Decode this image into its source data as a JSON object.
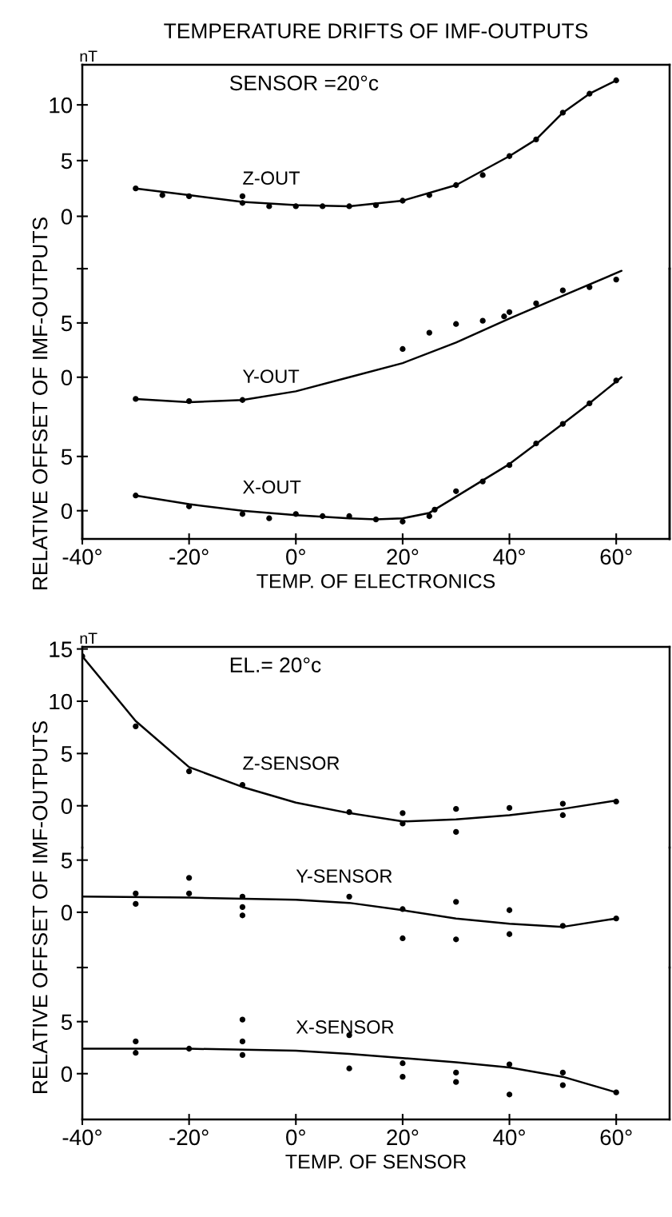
{
  "chart_data": [
    {
      "type": "line",
      "title": "TEMPERATURE DRIFTS OF IMF-OUTPUTS",
      "annotations": [
        "nT",
        "SENSOR =20°c"
      ],
      "xlim": [
        -40,
        70
      ],
      "ylim": [
        -4.7,
        13.6
      ],
      "yticks": [
        {
          "value": -4.7,
          "label": null
        },
        0,
        5,
        10
      ],
      "tick_labels": "y",
      "grid": false,
      "legend": false,
      "series": [
        {
          "name": "Z-OUT",
          "marker": "none",
          "color": "#000000",
          "x": [
            -30,
            -20,
            -10,
            0,
            10,
            20,
            30,
            40,
            45,
            50,
            55,
            60
          ],
          "values": [
            2.5,
            1.9,
            1.3,
            1.0,
            0.9,
            1.4,
            2.8,
            5.4,
            6.9,
            9.3,
            11.0,
            12.2
          ]
        },
        {
          "type": "scatter",
          "marker": "circle",
          "color": "#000000",
          "x": [
            -30,
            -25,
            -20,
            -10,
            -10,
            -5,
            0,
            5,
            10,
            15,
            20,
            25,
            30,
            35,
            40,
            45,
            50,
            55,
            60
          ],
          "values": [
            2.5,
            1.9,
            1.8,
            1.2,
            1.8,
            0.9,
            0.9,
            0.9,
            0.9,
            1.0,
            1.4,
            1.9,
            2.8,
            3.7,
            5.4,
            6.9,
            9.3,
            11.0,
            12.2
          ]
        }
      ]
    },
    {
      "type": "line",
      "ylabel": "RELATIVE OFFSET OF IMF-OUTPUTS",
      "xlim": [
        -40,
        70
      ],
      "ylim": [
        -14.9,
        10.0
      ],
      "yticks": [
        0,
        5
      ],
      "tick_labels": "y",
      "grid": false,
      "legend": false,
      "series": [
        {
          "name": "Y-OUT",
          "marker": "none",
          "color": "#000000",
          "x": [
            -30,
            -20,
            -10,
            0,
            10,
            20,
            30,
            40,
            50,
            61
          ],
          "values": [
            -2.0,
            -2.3,
            -2.1,
            -1.3,
            0.0,
            1.3,
            3.2,
            5.4,
            7.5,
            9.8
          ]
        },
        {
          "type": "scatter",
          "marker": "circle",
          "color": "#000000",
          "x": [
            -30,
            -20,
            -10,
            20,
            25,
            30,
            35,
            39,
            40,
            45,
            50,
            55,
            60
          ],
          "values": [
            -2.0,
            -2.2,
            -2.1,
            2.6,
            4.1,
            4.9,
            5.2,
            5.6,
            6.0,
            6.8,
            8.0,
            8.3,
            9.0
          ]
        }
      ]
    },
    {
      "type": "line",
      "xlabel": "TEMP. OF ELECTRONICS",
      "xlim": [
        -40,
        70
      ],
      "ylim": [
        -2.6,
        22.3
      ],
      "yticks": [
        0,
        5
      ],
      "xticks": [
        {
          "value": -40,
          "label": "-40°"
        },
        {
          "value": -20,
          "label": "-20°"
        },
        {
          "value": 0,
          "label": "0°"
        },
        {
          "value": 20,
          "label": "20°"
        },
        {
          "value": 40,
          "label": "40°"
        },
        {
          "value": 60,
          "label": "60°"
        }
      ],
      "grid": false,
      "legend": false,
      "series": [
        {
          "name": "X-OUT",
          "marker": "none",
          "color": "#000000",
          "x": [
            -30,
            -20,
            -10,
            0,
            10,
            15,
            20,
            25,
            30,
            40,
            50,
            55,
            61
          ],
          "values": [
            1.4,
            0.6,
            0.0,
            -0.4,
            -0.7,
            -0.8,
            -0.7,
            -0.2,
            1.3,
            4.3,
            8.0,
            9.9,
            12.3
          ]
        },
        {
          "type": "scatter",
          "marker": "circle",
          "color": "#000000",
          "x": [
            -30,
            -20,
            -10,
            -5,
            0,
            5,
            10,
            15,
            20,
            25,
            26,
            30,
            35,
            40,
            45,
            50,
            55,
            60
          ],
          "values": [
            1.4,
            0.4,
            -0.3,
            -0.7,
            -0.3,
            -0.5,
            -0.5,
            -0.8,
            -1.0,
            -0.5,
            0.1,
            1.8,
            2.7,
            4.2,
            6.2,
            8.0,
            9.9,
            12.0
          ]
        }
      ]
    },
    {
      "type": "line",
      "annotations": [
        "nT",
        "EL.= 20°c"
      ],
      "xlim": [
        -40,
        70
      ],
      "ylim": [
        -4.0,
        15.2
      ],
      "yticks": [
        0,
        5,
        10,
        15
      ],
      "tick_labels": "y",
      "grid": false,
      "legend": false,
      "series": [
        {
          "name": "Z-SENSOR",
          "marker": "none",
          "color": "#000000",
          "x": [
            -40,
            -30,
            -20,
            -10,
            0,
            10,
            20,
            30,
            40,
            50,
            60
          ],
          "values": [
            14.3,
            8.1,
            3.7,
            1.8,
            0.3,
            -0.7,
            -1.5,
            -1.3,
            -0.9,
            -0.3,
            0.5
          ]
        },
        {
          "type": "scatter",
          "marker": "circle",
          "color": "#000000",
          "x": [
            -40,
            -30,
            -20,
            -10,
            10,
            20,
            20,
            30,
            30,
            40,
            50,
            50,
            60
          ],
          "values": [
            14.3,
            7.6,
            3.3,
            2.0,
            -0.6,
            -0.7,
            -1.7,
            -0.3,
            -2.5,
            -0.2,
            0.2,
            -0.9,
            0.4
          ]
        }
      ]
    },
    {
      "type": "line",
      "ylabel": "RELATIVE OFFSET OF IMF-OUTPUTS",
      "xlim": [
        -40,
        70
      ],
      "ylim": [
        -5.3,
        6.2
      ],
      "yticks": [
        {
          "value": -5.3,
          "label": null
        },
        0,
        5
      ],
      "tick_labels": "y",
      "grid": false,
      "legend": false,
      "series": [
        {
          "name": "Y-SENSOR",
          "marker": "none",
          "color": "#000000",
          "x": [
            -40,
            -20,
            0,
            10,
            20,
            30,
            40,
            50,
            60
          ],
          "values": [
            1.5,
            1.4,
            1.2,
            0.9,
            0.2,
            -0.6,
            -1.1,
            -1.4,
            -0.6
          ]
        },
        {
          "type": "scatter",
          "marker": "circle",
          "color": "#000000",
          "x": [
            -30,
            -30,
            -20,
            -20,
            -10,
            -10,
            -10,
            10,
            20,
            20,
            30,
            30,
            40,
            40,
            50,
            60
          ],
          "values": [
            1.8,
            0.8,
            3.3,
            1.8,
            1.5,
            0.5,
            -0.3,
            1.5,
            0.3,
            -2.5,
            1.0,
            -2.6,
            0.2,
            -2.1,
            -1.3,
            -0.6
          ]
        }
      ]
    },
    {
      "type": "line",
      "xlabel": "TEMP. OF SENSOR",
      "xlim": [
        -40,
        70
      ],
      "ylim": [
        -4.4,
        10.2
      ],
      "yticks": [
        0,
        5
      ],
      "xticks": [
        {
          "value": -40,
          "label": "-40°"
        },
        {
          "value": -20,
          "label": "-20°"
        },
        {
          "value": 0,
          "label": "0°"
        },
        {
          "value": 20,
          "label": "20°"
        },
        {
          "value": 40,
          "label": "40°"
        },
        {
          "value": 60,
          "label": "60°"
        }
      ],
      "grid": false,
      "legend": false,
      "series": [
        {
          "name": "X-SENSOR",
          "marker": "none",
          "color": "#000000",
          "x": [
            -40,
            -20,
            0,
            10,
            20,
            30,
            40,
            50,
            60
          ],
          "values": [
            2.4,
            2.4,
            2.2,
            1.9,
            1.5,
            1.1,
            0.6,
            -0.3,
            -1.8
          ]
        },
        {
          "type": "scatter",
          "marker": "circle",
          "color": "#000000",
          "x": [
            -30,
            -30,
            -20,
            -10,
            -10,
            -10,
            10,
            10,
            20,
            20,
            30,
            30,
            40,
            40,
            50,
            50,
            60
          ],
          "values": [
            3.1,
            2.0,
            2.4,
            5.2,
            3.1,
            1.8,
            3.7,
            0.5,
            1.0,
            -0.3,
            0.1,
            -0.8,
            0.9,
            -2.0,
            0.1,
            -1.1,
            -1.8
          ]
        }
      ]
    }
  ]
}
